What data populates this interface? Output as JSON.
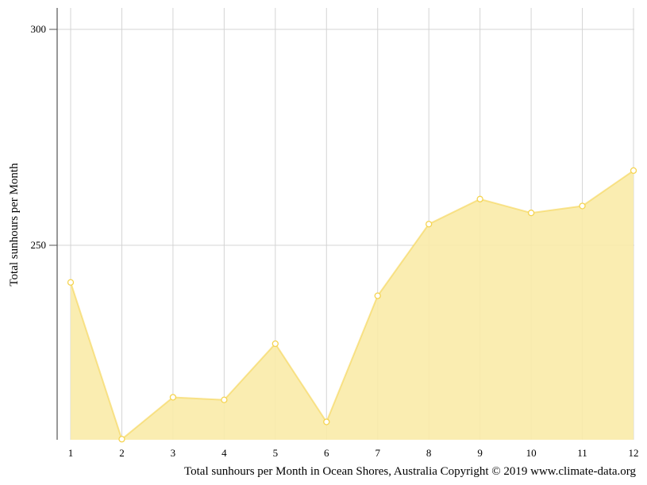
{
  "chart_data": {
    "type": "area",
    "title": "",
    "xlabel": "",
    "ylabel": "Total sunhours per Month",
    "caption": "Total sunhours per Month in Ocean Shores, Australia Copyright © 2019 www.climate-data.org",
    "x": [
      1,
      2,
      3,
      4,
      5,
      6,
      7,
      8,
      9,
      10,
      11,
      12
    ],
    "x_tick_labels": [
      "1",
      "2",
      "3",
      "4",
      "5",
      "6",
      "7",
      "8",
      "9",
      "10",
      "11",
      "12"
    ],
    "y_tick_labels": [
      "250",
      "300"
    ],
    "y_ticks": [
      250,
      300
    ],
    "ylim": [
      205,
      305
    ],
    "grid": true,
    "series": [
      {
        "values": [
          241.4,
          205.1,
          214.8,
          214.2,
          227.2,
          209.1,
          238.3,
          254.9,
          260.7,
          257.5,
          259.1,
          267.3
        ],
        "color": "#f5d451",
        "fill_color": "#f9eba9"
      }
    ]
  }
}
